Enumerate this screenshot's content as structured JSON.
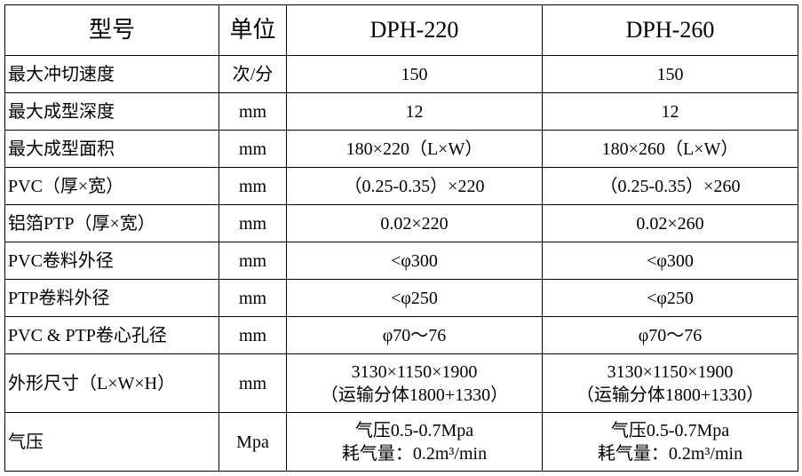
{
  "table": {
    "header": [
      "型号",
      "单位",
      "DPH-220",
      "DPH-260"
    ],
    "rows": [
      [
        "最大冲切速度",
        "次/分",
        "150",
        "150"
      ],
      [
        "最大成型深度",
        "mm",
        "12",
        "12"
      ],
      [
        "最大成型面积",
        "mm",
        "180×220（L×W）",
        "180×260（L×W）"
      ],
      [
        "PVC（厚×宽）",
        "mm",
        "（0.25-0.35）×220",
        "（0.25-0.35）×260"
      ],
      [
        "铝箔PTP（厚×宽）",
        "mm",
        "0.02×220",
        "0.02×260"
      ],
      [
        "PVC卷料外径",
        "mm",
        "<φ300",
        "<φ300"
      ],
      [
        "PTP卷料外径",
        "mm",
        "<φ250",
        "<φ250"
      ],
      [
        "PVC & PTP卷心孔径",
        "mm",
        "φ70～76",
        "φ70～76"
      ],
      [
        "外形尺寸（L×W×H）",
        "mm",
        [
          "3130×1150×1900",
          "（运输分体1800+1330）"
        ],
        [
          "3130×1150×1900",
          "（运输分体1800+1330）"
        ]
      ],
      [
        "气压",
        "Mpa",
        [
          "气压0.5-0.7Mpa",
          "耗气量：0.2m³/min"
        ],
        [
          "气压0.5-0.7Mpa",
          "耗气量：0.2m³/min"
        ]
      ]
    ]
  }
}
